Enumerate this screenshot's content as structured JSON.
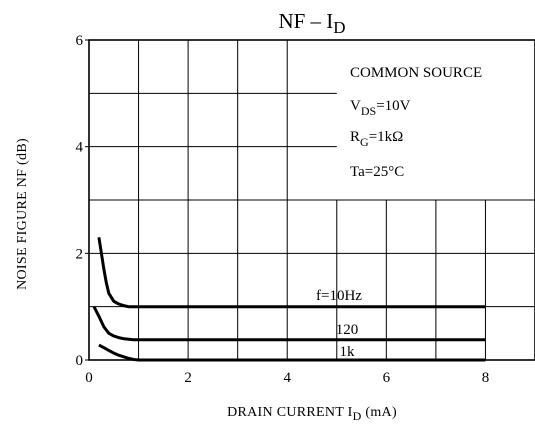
{
  "chart_data": {
    "type": "line",
    "title": "NF – I_D",
    "title_parts": {
      "main": "NF  –  I",
      "sub": "D"
    },
    "xlabel": "DRAIN CURRENT  I_D  (mA)",
    "xlabel_parts": {
      "pre": "DRAIN CURRENT  I",
      "sub": "D",
      "post": "  (mA)"
    },
    "ylabel": "NOISE FIGURE  NF  (dB)",
    "xlim": [
      0,
      9
    ],
    "ylim": [
      0,
      6
    ],
    "xticks": [
      0,
      2,
      4,
      6,
      8
    ],
    "yticks": [
      0,
      2,
      4,
      6
    ],
    "xtick_labels": [
      "0",
      "2",
      "4",
      "6",
      "8"
    ],
    "ytick_labels": [
      "0",
      "2",
      "4",
      "6"
    ],
    "x_gridlines": [
      1,
      2,
      3,
      4,
      5,
      6,
      7,
      8
    ],
    "y_gridlines": [
      1,
      2,
      3,
      4,
      5
    ],
    "grid": true,
    "conditions": [
      {
        "id": "source",
        "pre": "COMMON SOURCE",
        "sub": "",
        "post": ""
      },
      {
        "id": "vds",
        "pre": "V",
        "sub": "DS",
        "post": "=10V"
      },
      {
        "id": "rg",
        "pre": "R",
        "sub": "G",
        "post": "=1kΩ"
      },
      {
        "id": "ta",
        "pre": "Ta=25°C",
        "sub": "",
        "post": ""
      }
    ],
    "series": [
      {
        "name": "f=10Hz",
        "x": [
          0.2,
          0.25,
          0.3,
          0.35,
          0.4,
          0.5,
          0.6,
          0.7,
          0.8,
          0.9,
          1.0,
          2,
          3,
          4,
          5,
          6,
          7,
          8
        ],
        "y": [
          2.3,
          2.0,
          1.7,
          1.45,
          1.25,
          1.1,
          1.05,
          1.02,
          1.0,
          1.0,
          1.0,
          1.0,
          1.0,
          1.0,
          1.0,
          1.0,
          1.0,
          1.0
        ]
      },
      {
        "name": "120",
        "x": [
          0.1,
          0.2,
          0.3,
          0.4,
          0.5,
          0.6,
          0.7,
          0.8,
          0.9,
          1.0,
          2,
          3,
          4,
          5,
          6,
          7,
          8
        ],
        "y": [
          1.0,
          0.82,
          0.62,
          0.5,
          0.45,
          0.42,
          0.4,
          0.39,
          0.38,
          0.38,
          0.38,
          0.38,
          0.38,
          0.38,
          0.38,
          0.38,
          0.38
        ]
      },
      {
        "name": "1k",
        "x": [
          0.2,
          0.3,
          0.4,
          0.5,
          0.6,
          0.7,
          0.8,
          0.9,
          1.0,
          2,
          3,
          4,
          5,
          6,
          7,
          8
        ],
        "y": [
          0.28,
          0.23,
          0.18,
          0.13,
          0.09,
          0.06,
          0.03,
          0.01,
          0.0,
          0.0,
          0.0,
          0.0,
          0.0,
          0.0,
          0.0,
          0.0
        ]
      }
    ]
  }
}
